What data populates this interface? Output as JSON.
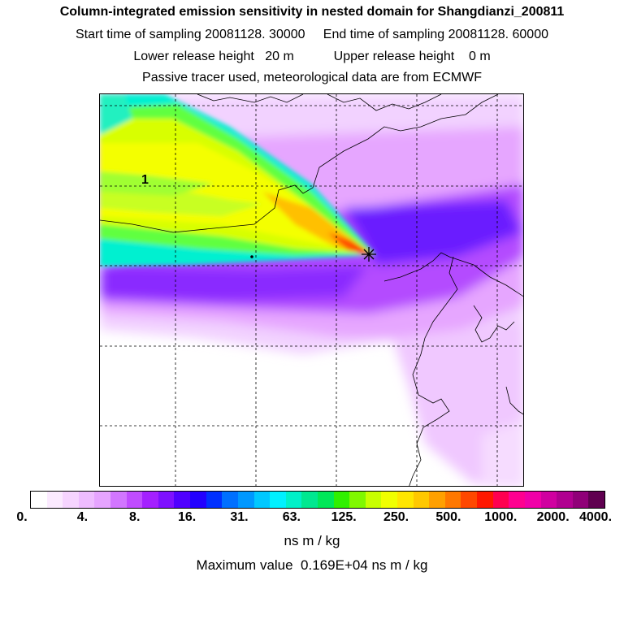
{
  "header": {
    "title": "Column-integrated emission sensitivity in nested domain for Shangdianzi_200811",
    "sampling_line": "Start time of sampling 20081128. 30000     End time of sampling 20081128. 60000",
    "release_line": "Lower release height   20 m           Upper release height    0 m",
    "source_line": "Passive tracer used, meteorological data are from ECMWF"
  },
  "map": {
    "contour_label": "1",
    "release_site_marker": "star-icon",
    "plume_colors": [
      "#00ffff",
      "#00e8a0",
      "#a0ff00",
      "#ffff00",
      "#ffd000",
      "#ff7000",
      "#ff2000"
    ],
    "background_colors": [
      "#ffffff",
      "#f5d8ff",
      "#e8a8ff",
      "#b040ff",
      "#5a00ff"
    ]
  },
  "colorbar": {
    "colors": [
      "#ffffff",
      "#fbeaff",
      "#f6d4ff",
      "#eebcff",
      "#e6a4ff",
      "#d276ff",
      "#c04cff",
      "#a420ff",
      "#7e10ff",
      "#5000ff",
      "#2200ff",
      "#0030ff",
      "#0070ff",
      "#0098ff",
      "#00c8ff",
      "#00f0ff",
      "#00f0c8",
      "#00e890",
      "#00e858",
      "#30f000",
      "#80f800",
      "#c8ff00",
      "#f0ff00",
      "#ffe600",
      "#ffc800",
      "#ffa000",
      "#ff7800",
      "#ff4800",
      "#ff1800",
      "#ff0050",
      "#ff0090",
      "#f000a8",
      "#d000a0",
      "#b00090",
      "#900078",
      "#600050"
    ],
    "tick_labels": [
      "0.",
      "4.",
      "8.",
      "16.",
      "31.",
      "63.",
      "125.",
      "250.",
      "500.",
      "1000.",
      "2000.",
      "4000."
    ],
    "unit": "ns m / kg"
  },
  "footer": {
    "max_value_text": "Maximum value  0.169E+04 ns m / kg"
  }
}
